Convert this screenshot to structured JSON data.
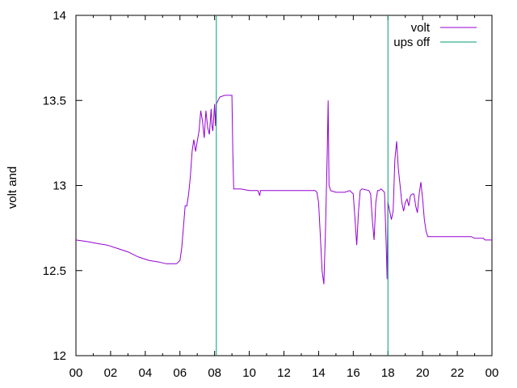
{
  "chart_data": {
    "type": "line",
    "ylabel": "volt and",
    "xlim": [
      0,
      24
    ],
    "ylim": [
      12,
      14
    ],
    "x_ticks": [
      "00",
      "02",
      "04",
      "06",
      "08",
      "10",
      "12",
      "14",
      "16",
      "18",
      "20",
      "22",
      "00"
    ],
    "y_ticks": [
      "12",
      "12.5",
      "13",
      "13.5",
      "14"
    ],
    "grid": false,
    "legend_position": "top-right",
    "series": [
      {
        "name": "volt",
        "color": "#9400d3",
        "points": [
          [
            0,
            12.68
          ],
          [
            0.7,
            12.67
          ],
          [
            1.2,
            12.66
          ],
          [
            1.8,
            12.65
          ],
          [
            2.4,
            12.63
          ],
          [
            3.0,
            12.61
          ],
          [
            3.6,
            12.58
          ],
          [
            4.2,
            12.56
          ],
          [
            4.8,
            12.55
          ],
          [
            5.2,
            12.54
          ],
          [
            5.8,
            12.54
          ],
          [
            6.0,
            12.56
          ],
          [
            6.1,
            12.63
          ],
          [
            6.2,
            12.75
          ],
          [
            6.3,
            12.88
          ],
          [
            6.4,
            12.88
          ],
          [
            6.5,
            12.95
          ],
          [
            6.6,
            13.05
          ],
          [
            6.7,
            13.2
          ],
          [
            6.8,
            13.27
          ],
          [
            6.9,
            13.2
          ],
          [
            7.0,
            13.26
          ],
          [
            7.1,
            13.32
          ],
          [
            7.2,
            13.44
          ],
          [
            7.3,
            13.38
          ],
          [
            7.4,
            13.28
          ],
          [
            7.5,
            13.44
          ],
          [
            7.6,
            13.34
          ],
          [
            7.7,
            13.3
          ],
          [
            7.8,
            13.45
          ],
          [
            7.85,
            13.35
          ],
          [
            7.9,
            13.32
          ],
          [
            8.0,
            13.48
          ],
          [
            8.05,
            13.35
          ],
          [
            8.1,
            13.48
          ],
          [
            8.2,
            13.5
          ],
          [
            8.3,
            13.52
          ],
          [
            8.6,
            13.53
          ],
          [
            8.9,
            13.53
          ],
          [
            9.0,
            13.53
          ],
          [
            9.05,
            13.2
          ],
          [
            9.1,
            12.98
          ],
          [
            9.5,
            12.98
          ],
          [
            10.0,
            12.97
          ],
          [
            10.5,
            12.97
          ],
          [
            10.6,
            12.94
          ],
          [
            10.65,
            12.97
          ],
          [
            11.0,
            12.97
          ],
          [
            12.0,
            12.97
          ],
          [
            13.0,
            12.97
          ],
          [
            13.8,
            12.97
          ],
          [
            13.9,
            12.96
          ],
          [
            14.0,
            12.9
          ],
          [
            14.1,
            12.7
          ],
          [
            14.2,
            12.5
          ],
          [
            14.3,
            12.42
          ],
          [
            14.4,
            12.75
          ],
          [
            14.5,
            13.2
          ],
          [
            14.55,
            13.5
          ],
          [
            14.6,
            13.0
          ],
          [
            14.7,
            12.97
          ],
          [
            15.0,
            12.96
          ],
          [
            15.5,
            12.96
          ],
          [
            15.8,
            12.97
          ],
          [
            16.0,
            12.95
          ],
          [
            16.1,
            12.8
          ],
          [
            16.2,
            12.65
          ],
          [
            16.3,
            12.85
          ],
          [
            16.4,
            12.97
          ],
          [
            16.5,
            12.98
          ],
          [
            16.9,
            12.97
          ],
          [
            17.0,
            12.95
          ],
          [
            17.1,
            12.8
          ],
          [
            17.2,
            12.68
          ],
          [
            17.3,
            12.9
          ],
          [
            17.4,
            12.97
          ],
          [
            17.5,
            12.97
          ],
          [
            17.6,
            12.98
          ],
          [
            17.8,
            12.96
          ],
          [
            17.9,
            12.65
          ],
          [
            17.95,
            12.45
          ],
          [
            18.0,
            12.9
          ],
          [
            18.1,
            12.85
          ],
          [
            18.2,
            12.8
          ],
          [
            18.3,
            12.85
          ],
          [
            18.4,
            13.15
          ],
          [
            18.5,
            13.26
          ],
          [
            18.6,
            13.1
          ],
          [
            18.7,
            13.0
          ],
          [
            18.8,
            12.9
          ],
          [
            18.9,
            12.85
          ],
          [
            19.0,
            12.9
          ],
          [
            19.1,
            12.92
          ],
          [
            19.2,
            12.88
          ],
          [
            19.3,
            12.94
          ],
          [
            19.4,
            12.95
          ],
          [
            19.5,
            12.95
          ],
          [
            19.6,
            12.88
          ],
          [
            19.7,
            12.84
          ],
          [
            19.8,
            12.95
          ],
          [
            19.9,
            13.02
          ],
          [
            20.0,
            12.92
          ],
          [
            20.1,
            12.8
          ],
          [
            20.2,
            12.73
          ],
          [
            20.3,
            12.7
          ],
          [
            20.5,
            12.7
          ],
          [
            21.0,
            12.7
          ],
          [
            22.0,
            12.7
          ],
          [
            22.8,
            12.7
          ],
          [
            23.0,
            12.69
          ],
          [
            23.5,
            12.69
          ],
          [
            23.6,
            12.68
          ],
          [
            24.0,
            12.68
          ]
        ]
      },
      {
        "name": "ups off",
        "color": "#009e73",
        "vertical_x": [
          8.1,
          18.0
        ]
      }
    ]
  }
}
